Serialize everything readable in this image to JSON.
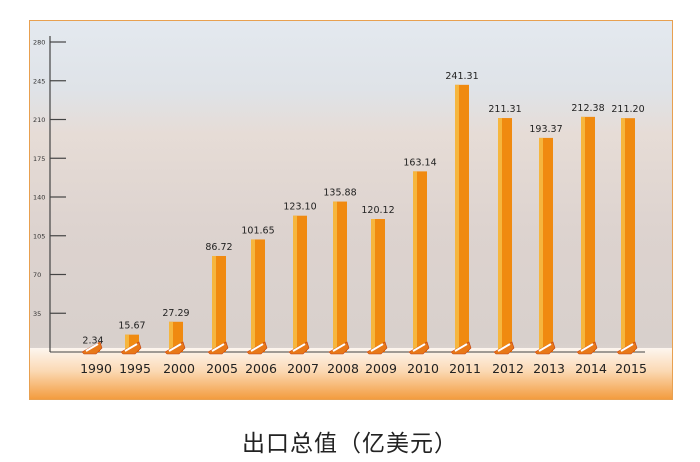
{
  "chart_data": {
    "type": "bar",
    "title": "出口总值（亿美元）",
    "categories": [
      "1990",
      "1995",
      "2000",
      "2005",
      "2006",
      "2007",
      "2008",
      "2009",
      "2010",
      "2011",
      "2012",
      "2013",
      "2014",
      "2015"
    ],
    "values": [
      2.34,
      15.67,
      27.29,
      86.72,
      101.65,
      123.1,
      135.88,
      120.12,
      163.14,
      241.31,
      211.31,
      193.37,
      212.38,
      211.2
    ],
    "labels": [
      "2.34",
      "15.67",
      "27.29",
      "86.72",
      "101.65",
      "123.10",
      "135.88",
      "120.12",
      "163.14",
      "241.31",
      "211.31",
      "193.37",
      "212.38",
      "211.20"
    ],
    "yticks": [
      35,
      70,
      105,
      140,
      175,
      210,
      245,
      280
    ],
    "ylim": [
      0,
      280
    ],
    "xlabel": "",
    "ylabel": "",
    "grid": false,
    "colors": {
      "bar": "#f08a10",
      "bar_highlight": "#f8c04a",
      "axis": "#444444"
    }
  }
}
